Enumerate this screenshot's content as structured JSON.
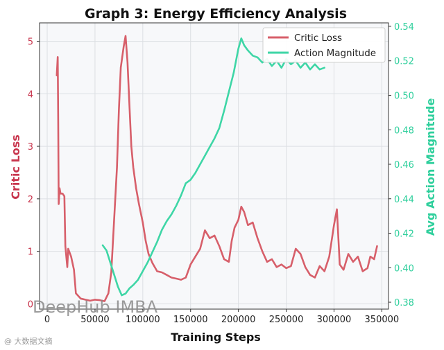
{
  "chart_data": {
    "type": "line",
    "title": "Graph 3: Energy Efficiency Analysis",
    "xlabel": "Training Steps",
    "ylabel_left": "Critic Loss",
    "ylabel_right": "Avg Action Magnitude",
    "xlim": [
      -8000,
      357000
    ],
    "ylim_left": [
      -0.1,
      5.35
    ],
    "ylim_right": [
      0.376,
      0.542
    ],
    "x_ticks": [
      "0",
      "50000",
      "100000",
      "150000",
      "200000",
      "250000",
      "300000",
      "350000"
    ],
    "y_ticks_left": [
      "0",
      "1",
      "2",
      "3",
      "4",
      "5"
    ],
    "y_ticks_right": [
      "0.38",
      "0.40",
      "0.42",
      "0.44",
      "0.46",
      "0.48",
      "0.50",
      "0.52",
      "0.54"
    ],
    "grid": true,
    "legend": "top-right",
    "colors": {
      "critic": "#d75f6a",
      "action": "#3ed6a6",
      "left_axis": "#c8354d",
      "right_axis": "#2ecf9c"
    },
    "series": [
      {
        "name": "Critic Loss",
        "axis": "left",
        "points": [
          [
            10000,
            4.35
          ],
          [
            11000,
            4.7
          ],
          [
            11500,
            3.5
          ],
          [
            12000,
            1.9
          ],
          [
            13000,
            2.2
          ],
          [
            14000,
            2.1
          ],
          [
            16000,
            2.1
          ],
          [
            18000,
            2.05
          ],
          [
            19000,
            1.1
          ],
          [
            21000,
            0.7
          ],
          [
            22000,
            1.05
          ],
          [
            25000,
            0.9
          ],
          [
            28000,
            0.65
          ],
          [
            30000,
            0.2
          ],
          [
            35000,
            0.1
          ],
          [
            40000,
            0.08
          ],
          [
            45000,
            0.06
          ],
          [
            50000,
            0.08
          ],
          [
            55000,
            0.07
          ],
          [
            60000,
            0.05
          ],
          [
            64000,
            0.2
          ],
          [
            67000,
            0.6
          ],
          [
            70000,
            1.6
          ],
          [
            73000,
            2.6
          ],
          [
            75000,
            3.7
          ],
          [
            77000,
            4.5
          ],
          [
            80000,
            4.9
          ],
          [
            82000,
            5.1
          ],
          [
            84000,
            4.6
          ],
          [
            86000,
            3.8
          ],
          [
            88000,
            3.0
          ],
          [
            90000,
            2.6
          ],
          [
            93000,
            2.2
          ],
          [
            96000,
            1.9
          ],
          [
            100000,
            1.55
          ],
          [
            103000,
            1.2
          ],
          [
            106000,
            0.95
          ],
          [
            110000,
            0.78
          ],
          [
            115000,
            0.62
          ],
          [
            120000,
            0.6
          ],
          [
            125000,
            0.55
          ],
          [
            130000,
            0.5
          ],
          [
            135000,
            0.48
          ],
          [
            140000,
            0.46
          ],
          [
            145000,
            0.5
          ],
          [
            150000,
            0.75
          ],
          [
            155000,
            0.9
          ],
          [
            160000,
            1.05
          ],
          [
            165000,
            1.4
          ],
          [
            170000,
            1.25
          ],
          [
            175000,
            1.3
          ],
          [
            180000,
            1.1
          ],
          [
            185000,
            0.85
          ],
          [
            190000,
            0.8
          ],
          [
            193000,
            1.2
          ],
          [
            196000,
            1.45
          ],
          [
            200000,
            1.6
          ],
          [
            203000,
            1.85
          ],
          [
            206000,
            1.75
          ],
          [
            210000,
            1.5
          ],
          [
            215000,
            1.55
          ],
          [
            220000,
            1.25
          ],
          [
            225000,
            1.0
          ],
          [
            230000,
            0.8
          ],
          [
            235000,
            0.85
          ],
          [
            240000,
            0.7
          ],
          [
            245000,
            0.75
          ],
          [
            250000,
            0.68
          ],
          [
            255000,
            0.72
          ],
          [
            260000,
            1.05
          ],
          [
            265000,
            0.95
          ],
          [
            270000,
            0.7
          ],
          [
            275000,
            0.55
          ],
          [
            280000,
            0.5
          ],
          [
            285000,
            0.72
          ],
          [
            290000,
            0.62
          ],
          [
            295000,
            0.9
          ],
          [
            300000,
            1.5
          ],
          [
            303000,
            1.8
          ],
          [
            306000,
            0.75
          ],
          [
            310000,
            0.65
          ],
          [
            315000,
            0.95
          ],
          [
            320000,
            0.8
          ],
          [
            325000,
            0.9
          ],
          [
            330000,
            0.62
          ],
          [
            335000,
            0.68
          ],
          [
            338000,
            0.9
          ],
          [
            342000,
            0.85
          ],
          [
            345000,
            1.1
          ]
        ]
      },
      {
        "name": "Action Magnitude",
        "axis": "right",
        "points": [
          [
            58000,
            0.413
          ],
          [
            62000,
            0.41
          ],
          [
            66000,
            0.403
          ],
          [
            70000,
            0.396
          ],
          [
            74000,
            0.389
          ],
          [
            78000,
            0.384
          ],
          [
            82000,
            0.385
          ],
          [
            86000,
            0.388
          ],
          [
            90000,
            0.39
          ],
          [
            95000,
            0.393
          ],
          [
            100000,
            0.398
          ],
          [
            105000,
            0.403
          ],
          [
            110000,
            0.409
          ],
          [
            115000,
            0.415
          ],
          [
            120000,
            0.422
          ],
          [
            125000,
            0.427
          ],
          [
            130000,
            0.431
          ],
          [
            135000,
            0.436
          ],
          [
            140000,
            0.442
          ],
          [
            145000,
            0.449
          ],
          [
            150000,
            0.451
          ],
          [
            155000,
            0.455
          ],
          [
            160000,
            0.46
          ],
          [
            165000,
            0.465
          ],
          [
            170000,
            0.47
          ],
          [
            175000,
            0.475
          ],
          [
            180000,
            0.481
          ],
          [
            185000,
            0.491
          ],
          [
            190000,
            0.502
          ],
          [
            195000,
            0.513
          ],
          [
            200000,
            0.527
          ],
          [
            203000,
            0.533
          ],
          [
            206000,
            0.529
          ],
          [
            210000,
            0.526
          ],
          [
            215000,
            0.523
          ],
          [
            220000,
            0.522
          ],
          [
            225000,
            0.519
          ],
          [
            230000,
            0.521
          ],
          [
            235000,
            0.517
          ],
          [
            240000,
            0.52
          ],
          [
            245000,
            0.516
          ],
          [
            250000,
            0.521
          ],
          [
            255000,
            0.518
          ],
          [
            260000,
            0.52
          ],
          [
            265000,
            0.516
          ],
          [
            270000,
            0.519
          ],
          [
            275000,
            0.515
          ],
          [
            280000,
            0.518
          ],
          [
            285000,
            0.515
          ],
          [
            290000,
            0.516
          ]
        ]
      }
    ]
  },
  "watermark": {
    "text": "DeepHub IMBA",
    "caption": "@ 大数据文摘"
  }
}
